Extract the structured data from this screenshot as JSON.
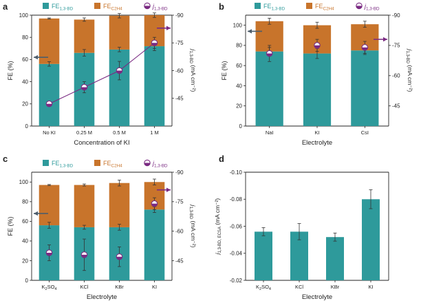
{
  "colors": {
    "teal": "#2e9a9b",
    "orange": "#c8742b",
    "purple": "#7a2a82",
    "axis": "#222222",
    "arrow_dark": "#4d5d6b"
  },
  "legend": {
    "fe_bd": {
      "main": "FE",
      "sub": "1,3-BD"
    },
    "fe_c2h4": {
      "main": "FE",
      "sub": "C2H4"
    },
    "j_bd": {
      "main": "j",
      "sub": "1,3-BD"
    }
  },
  "chart_data": [
    {
      "panel": "a",
      "type": "bar",
      "title": "",
      "xlabel": "Concentration of KI",
      "ylabel": "FE (%)",
      "y2label_main": "j",
      "y2label_sub": "1,3-BD",
      "y2label_unit": "(mA cm⁻²)",
      "ylim": [
        0,
        100
      ],
      "yticks": [
        "0",
        "20",
        "40",
        "60",
        "80",
        "100"
      ],
      "y2lim": [
        -30,
        -90
      ],
      "y2ticks": [
        "-45",
        "-60",
        "-75",
        "-90"
      ],
      "categories": [
        "No KI",
        "0.25 M",
        "0.5 M",
        "1 M"
      ],
      "series": [
        {
          "name": "FE 1,3-BD",
          "type": "bar",
          "values": [
            56,
            66,
            69,
            72
          ],
          "errors": [
            2,
            3,
            2,
            4
          ]
        },
        {
          "name": "FE C2H4",
          "type": "bar-stacked",
          "values": [
            41,
            30,
            30.5,
            28
          ],
          "errors": [
            0.5,
            1.5,
            2,
            2
          ]
        },
        {
          "name": "j 1,3-BD",
          "type": "line",
          "axis": "right",
          "values": [
            -42,
            -51,
            -60,
            -75
          ],
          "errors": [
            1,
            3,
            5,
            3
          ]
        }
      ],
      "arrows": [
        {
          "direction": "left",
          "series": "FE",
          "y": 62
        },
        {
          "direction": "right",
          "series": "j",
          "y2": -83
        }
      ]
    },
    {
      "panel": "b",
      "type": "bar",
      "title": "",
      "xlabel": "Electrolyte",
      "ylabel": "FE (%)",
      "y2label_main": "j",
      "y2label_sub": "1,3-BD",
      "y2label_unit": "(mA cm⁻²)",
      "ylim": [
        0,
        110
      ],
      "yticks": [
        "0",
        "20",
        "40",
        "60",
        "80",
        "100"
      ],
      "y2lim": [
        -35,
        -90
      ],
      "y2ticks": [
        "-45",
        "-60",
        "-75",
        "-90"
      ],
      "categories": [
        "NaI",
        "KI",
        "CsI"
      ],
      "series": [
        {
          "name": "FE 1,3-BD",
          "type": "bar",
          "values": [
            74,
            72,
            75
          ],
          "errors": [
            4,
            5,
            4
          ]
        },
        {
          "name": "FE C2H4",
          "type": "bar-stacked",
          "values": [
            30,
            28,
            26
          ],
          "errors": [
            3,
            3,
            3
          ]
        },
        {
          "name": "j 1,3-BD",
          "type": "line-none",
          "axis": "right",
          "values": [
            -71,
            -75,
            -74
          ],
          "errors": [
            4,
            3,
            3
          ]
        }
      ],
      "arrows": [
        {
          "direction": "left",
          "series": "FE",
          "y": 94
        },
        {
          "direction": "right",
          "series": "j",
          "y2": -78
        }
      ]
    },
    {
      "panel": "c",
      "type": "bar",
      "title": "",
      "xlabel": "Electrolyte",
      "ylabel": "FE (%)",
      "y2label_main": "j",
      "y2label_sub": "1,3-BD",
      "y2label_unit": "(mA cm⁻²)",
      "ylim": [
        0,
        110
      ],
      "yticks": [
        "0",
        "20",
        "40",
        "60",
        "80",
        "100"
      ],
      "y2lim": [
        -35,
        -90
      ],
      "y2ticks": [
        "-45",
        "-60",
        "-75",
        "-90"
      ],
      "categories": [
        "K2SO4",
        "KCl",
        "KBr",
        "KI"
      ],
      "category_labels": [
        {
          "main": "K",
          "sub": "2",
          "tail": "SO",
          "sub2": "4"
        },
        {
          "main": "KCl"
        },
        {
          "main": "KBr"
        },
        {
          "main": "KI"
        }
      ],
      "series": [
        {
          "name": "FE 1,3-BD",
          "type": "bar",
          "values": [
            56,
            54,
            54,
            72
          ],
          "errors": [
            3,
            2,
            3,
            3
          ]
        },
        {
          "name": "FE C2H4",
          "type": "bar-stacked",
          "values": [
            41,
            43,
            45,
            28
          ],
          "errors": [
            0.5,
            1,
            3,
            3
          ]
        },
        {
          "name": "j 1,3-BD",
          "type": "line-none",
          "axis": "right",
          "values": [
            -49,
            -48,
            -47,
            -74
          ],
          "errors": [
            4,
            8,
            5,
            3
          ]
        }
      ],
      "arrows": [
        {
          "direction": "left",
          "series": "FE",
          "y": 68
        },
        {
          "direction": "right",
          "series": "j",
          "y2": -81
        }
      ]
    },
    {
      "panel": "d",
      "type": "bar",
      "title": "",
      "xlabel": "Electrolyte",
      "ylabel_main": "j",
      "ylabel_sub": "1,3-BD, ECSA",
      "ylabel_unit": "(mA cm⁻²)",
      "ylim": [
        -0.02,
        -0.1
      ],
      "yticks": [
        "-0.02",
        "-0.04",
        "-0.06",
        "-0.08",
        "-0.10"
      ],
      "categories": [
        "K2SO4",
        "KCl",
        "KBr",
        "KI"
      ],
      "category_labels": [
        {
          "main": "K",
          "sub": "2",
          "tail": "SO",
          "sub2": "4"
        },
        {
          "main": "KCl"
        },
        {
          "main": "KBr"
        },
        {
          "main": "KI"
        }
      ],
      "series": [
        {
          "name": "j 1,3-BD, ECSA",
          "type": "bar",
          "values": [
            -0.056,
            -0.056,
            -0.052,
            -0.08
          ],
          "errors": [
            0.003,
            0.006,
            0.003,
            0.007
          ]
        }
      ]
    }
  ]
}
